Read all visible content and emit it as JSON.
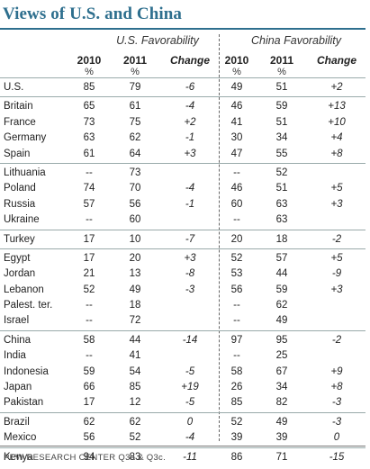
{
  "title": "Views of U.S. and China",
  "groups": {
    "us": "U.S. Favorability",
    "china": "China Favorability"
  },
  "columns": {
    "y2010": "2010",
    "y2011": "2011",
    "change": "Change",
    "pct": "%"
  },
  "sections": [
    [
      [
        "U.S.",
        "85",
        "79",
        "-6",
        "49",
        "51",
        "+2"
      ]
    ],
    [
      [
        "Britain",
        "65",
        "61",
        "-4",
        "46",
        "59",
        "+13"
      ],
      [
        "France",
        "73",
        "75",
        "+2",
        "41",
        "51",
        "+10"
      ],
      [
        "Germany",
        "63",
        "62",
        "-1",
        "30",
        "34",
        "+4"
      ],
      [
        "Spain",
        "61",
        "64",
        "+3",
        "47",
        "55",
        "+8"
      ]
    ],
    [
      [
        "Lithuania",
        "--",
        "73",
        "",
        "--",
        "52",
        ""
      ],
      [
        "Poland",
        "74",
        "70",
        "-4",
        "46",
        "51",
        "+5"
      ],
      [
        "Russia",
        "57",
        "56",
        "-1",
        "60",
        "63",
        "+3"
      ],
      [
        "Ukraine",
        "--",
        "60",
        "",
        "--",
        "63",
        ""
      ]
    ],
    [
      [
        "Turkey",
        "17",
        "10",
        "-7",
        "20",
        "18",
        "-2"
      ]
    ],
    [
      [
        "Egypt",
        "17",
        "20",
        "+3",
        "52",
        "57",
        "+5"
      ],
      [
        "Jordan",
        "21",
        "13",
        "-8",
        "53",
        "44",
        "-9"
      ],
      [
        "Lebanon",
        "52",
        "49",
        "-3",
        "56",
        "59",
        "+3"
      ],
      [
        "Palest. ter.",
        "--",
        "18",
        "",
        "--",
        "62",
        ""
      ],
      [
        "Israel",
        "--",
        "72",
        "",
        "--",
        "49",
        ""
      ]
    ],
    [
      [
        "China",
        "58",
        "44",
        "-14",
        "97",
        "95",
        "-2"
      ],
      [
        "India",
        "--",
        "41",
        "",
        "--",
        "25",
        ""
      ],
      [
        "Indonesia",
        "59",
        "54",
        "-5",
        "58",
        "67",
        "+9"
      ],
      [
        "Japan",
        "66",
        "85",
        "+19",
        "26",
        "34",
        "+8"
      ],
      [
        "Pakistan",
        "17",
        "12",
        "-5",
        "85",
        "82",
        "-3"
      ]
    ],
    [
      [
        "Brazil",
        "62",
        "62",
        "0",
        "52",
        "49",
        "-3"
      ],
      [
        "Mexico",
        "56",
        "52",
        "-4",
        "39",
        "39",
        "0"
      ]
    ],
    [
      [
        "Kenya",
        "94",
        "83",
        "-11",
        "86",
        "71",
        "-15"
      ]
    ]
  ],
  "footer": "PEW RESEARCH CENTER Q3a & Q3c."
}
